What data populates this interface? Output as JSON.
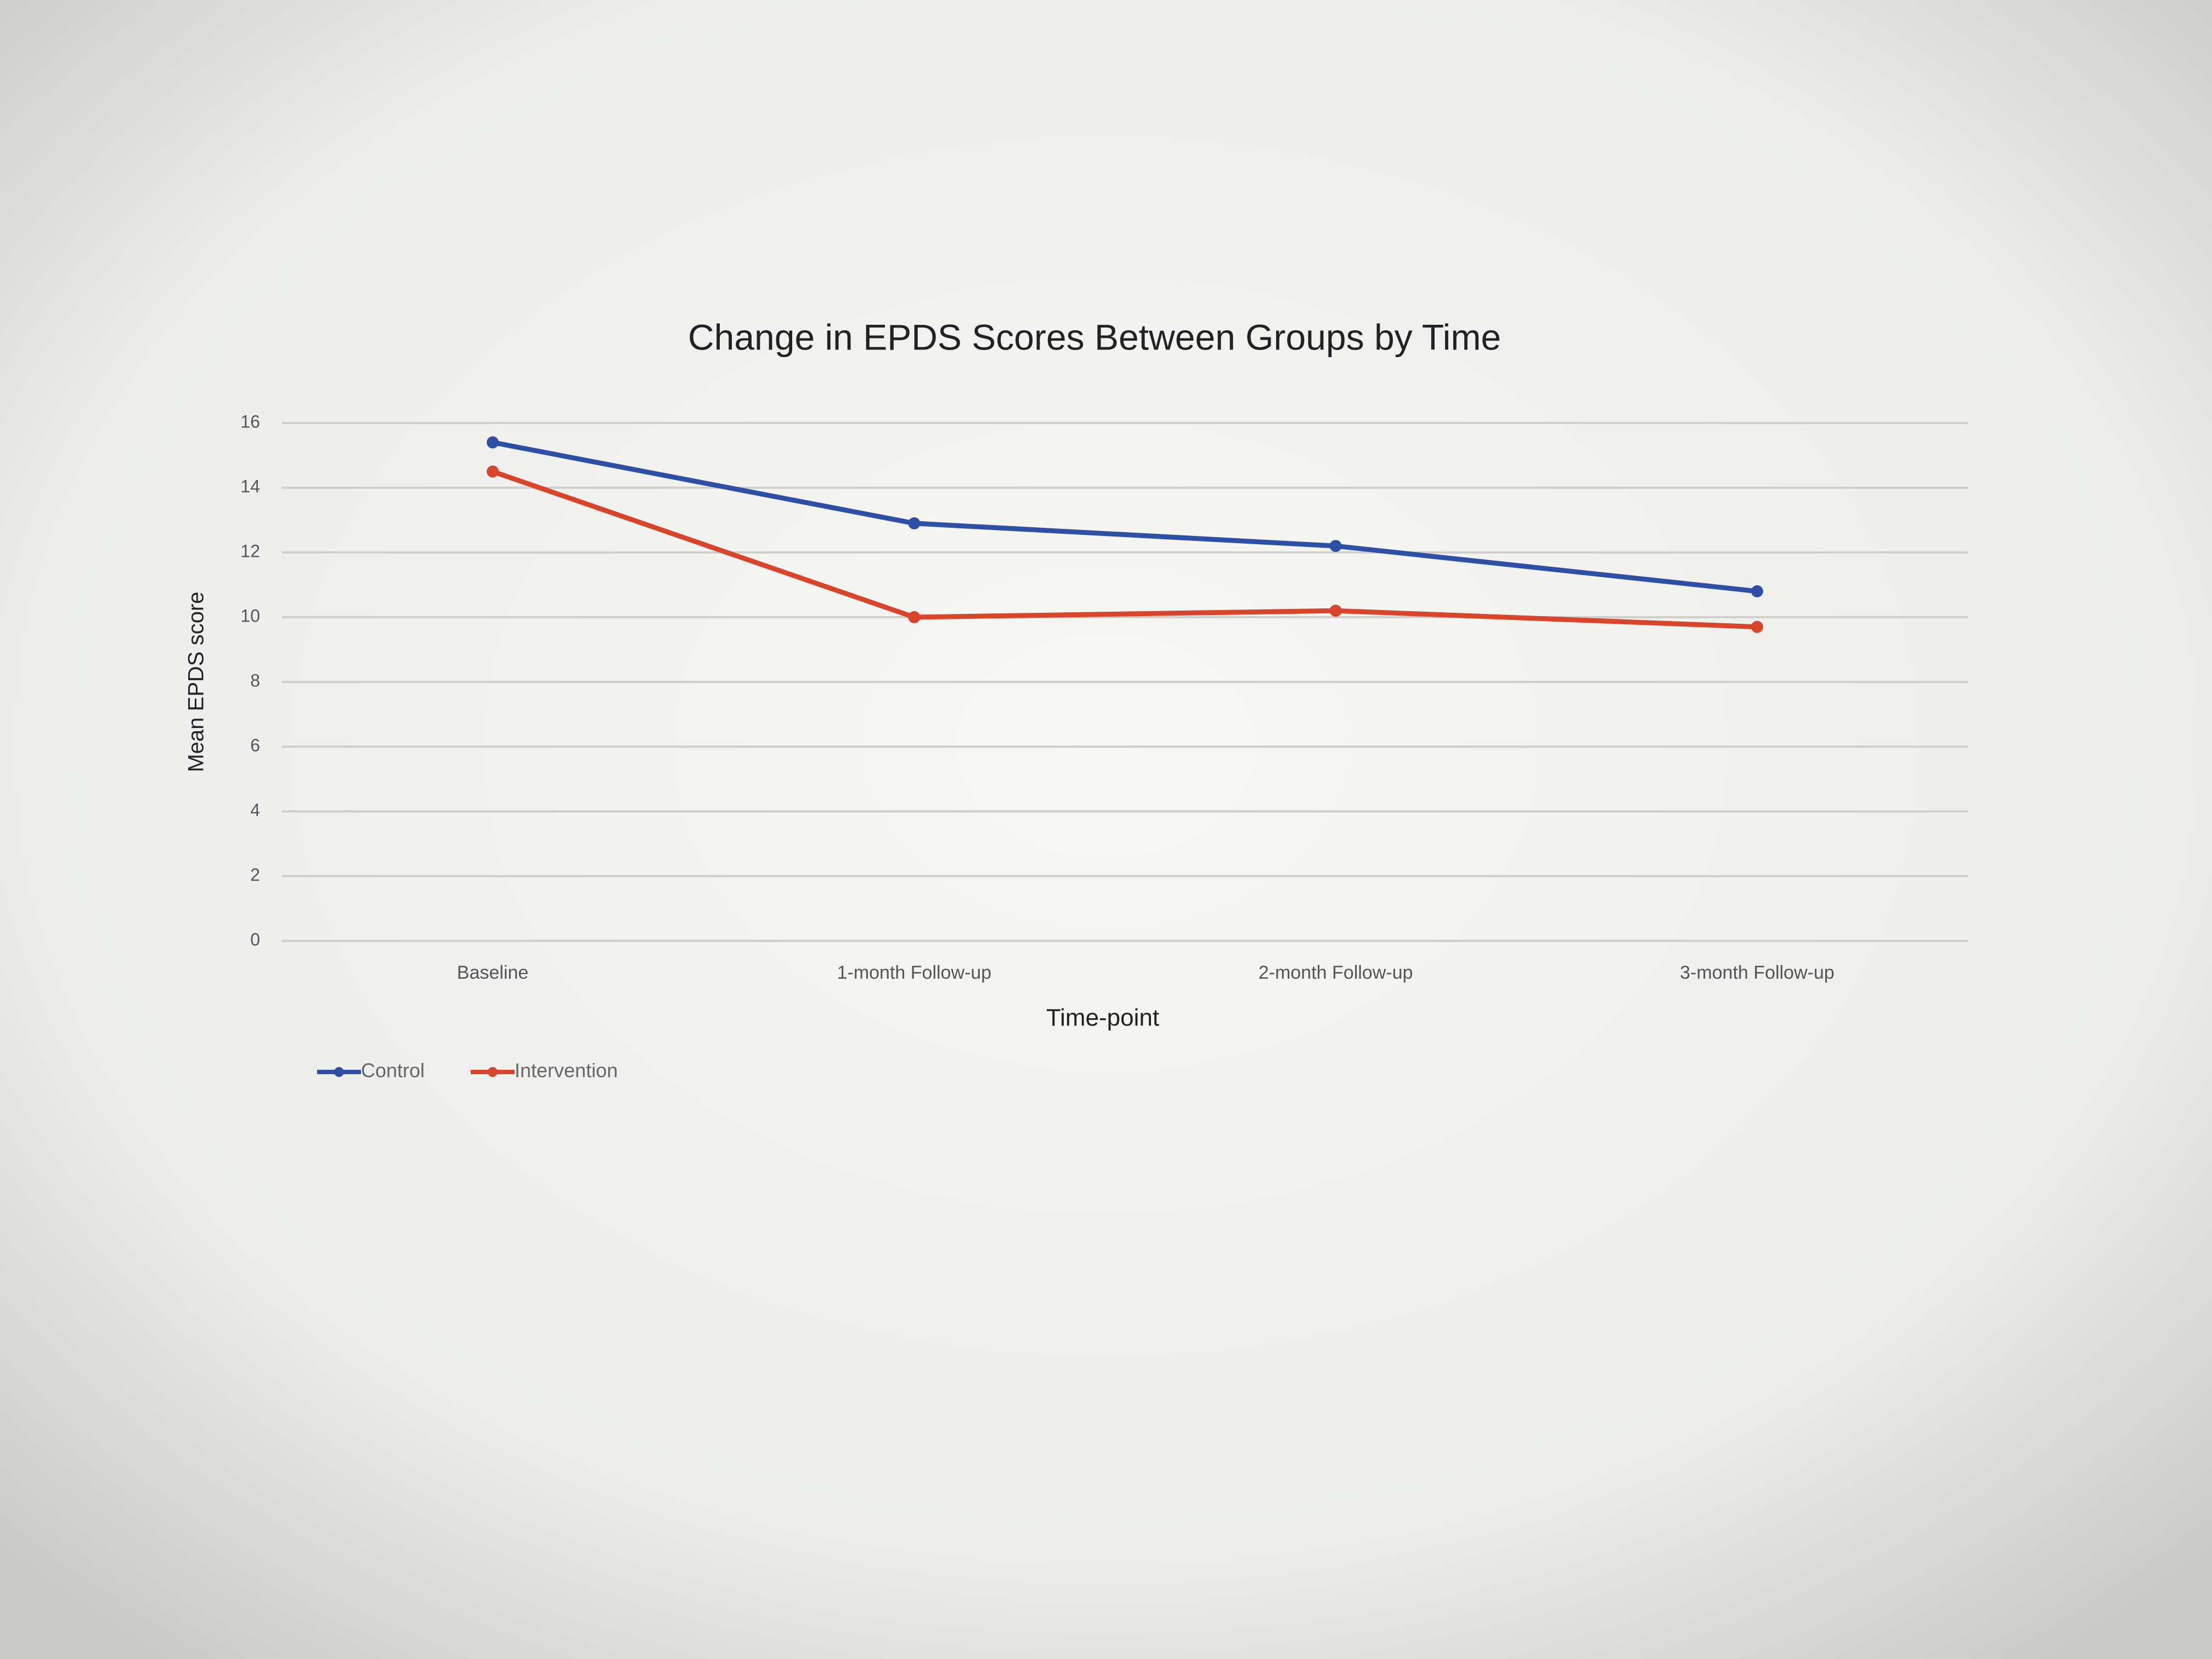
{
  "chart_data": {
    "type": "line",
    "title": "Change in EPDS Scores Between Groups by Time",
    "x_label": "Time-point",
    "y_label": "Mean EPDS score",
    "categories": [
      "Baseline",
      "1-month Follow-up",
      "2-month Follow-up",
      "3-month Follow-up"
    ],
    "series": [
      {
        "name": "Control",
        "color": "#2d4fa6",
        "values": [
          15.4,
          12.9,
          12.2,
          10.8
        ]
      },
      {
        "name": "Intervention",
        "color": "#d8452b",
        "values": [
          14.5,
          10.0,
          10.2,
          9.7
        ]
      }
    ],
    "ylim": [
      0,
      16
    ],
    "yticks": [
      0,
      2,
      4,
      6,
      8,
      10,
      12,
      14,
      16
    ],
    "grid": true,
    "legend": "bottom-left"
  }
}
